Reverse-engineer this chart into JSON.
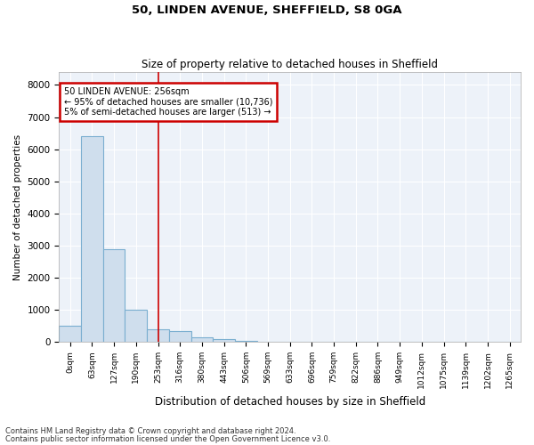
{
  "title1": "50, LINDEN AVENUE, SHEFFIELD, S8 0GA",
  "title2": "Size of property relative to detached houses in Sheffield",
  "xlabel": "Distribution of detached houses by size in Sheffield",
  "ylabel": "Number of detached properties",
  "categories": [
    "0sqm",
    "63sqm",
    "127sqm",
    "190sqm",
    "253sqm",
    "316sqm",
    "380sqm",
    "443sqm",
    "506sqm",
    "569sqm",
    "633sqm",
    "696sqm",
    "759sqm",
    "822sqm",
    "886sqm",
    "949sqm",
    "1012sqm",
    "1075sqm",
    "1139sqm",
    "1202sqm",
    "1265sqm"
  ],
  "values": [
    500,
    6400,
    2900,
    1000,
    400,
    350,
    150,
    100,
    50,
    15,
    5,
    2,
    1,
    0,
    0,
    0,
    0,
    0,
    0,
    0,
    0
  ],
  "bar_color": "#cfdeed",
  "bar_edge_color": "#7aaed0",
  "highlight_index": 4,
  "highlight_line_color": "#cc0000",
  "annotation_box_color": "#ffffff",
  "annotation_box_edge_color": "#cc0000",
  "annotation_line1": "50 LINDEN AVENUE: 256sqm",
  "annotation_line2": "← 95% of detached houses are smaller (10,736)",
  "annotation_line3": "5% of semi-detached houses are larger (513) →",
  "ylim": [
    0,
    8400
  ],
  "yticks": [
    0,
    1000,
    2000,
    3000,
    4000,
    5000,
    6000,
    7000,
    8000
  ],
  "bg_color": "#edf2f9",
  "grid_color": "#ffffff",
  "footer1": "Contains HM Land Registry data © Crown copyright and database right 2024.",
  "footer2": "Contains public sector information licensed under the Open Government Licence v3.0."
}
